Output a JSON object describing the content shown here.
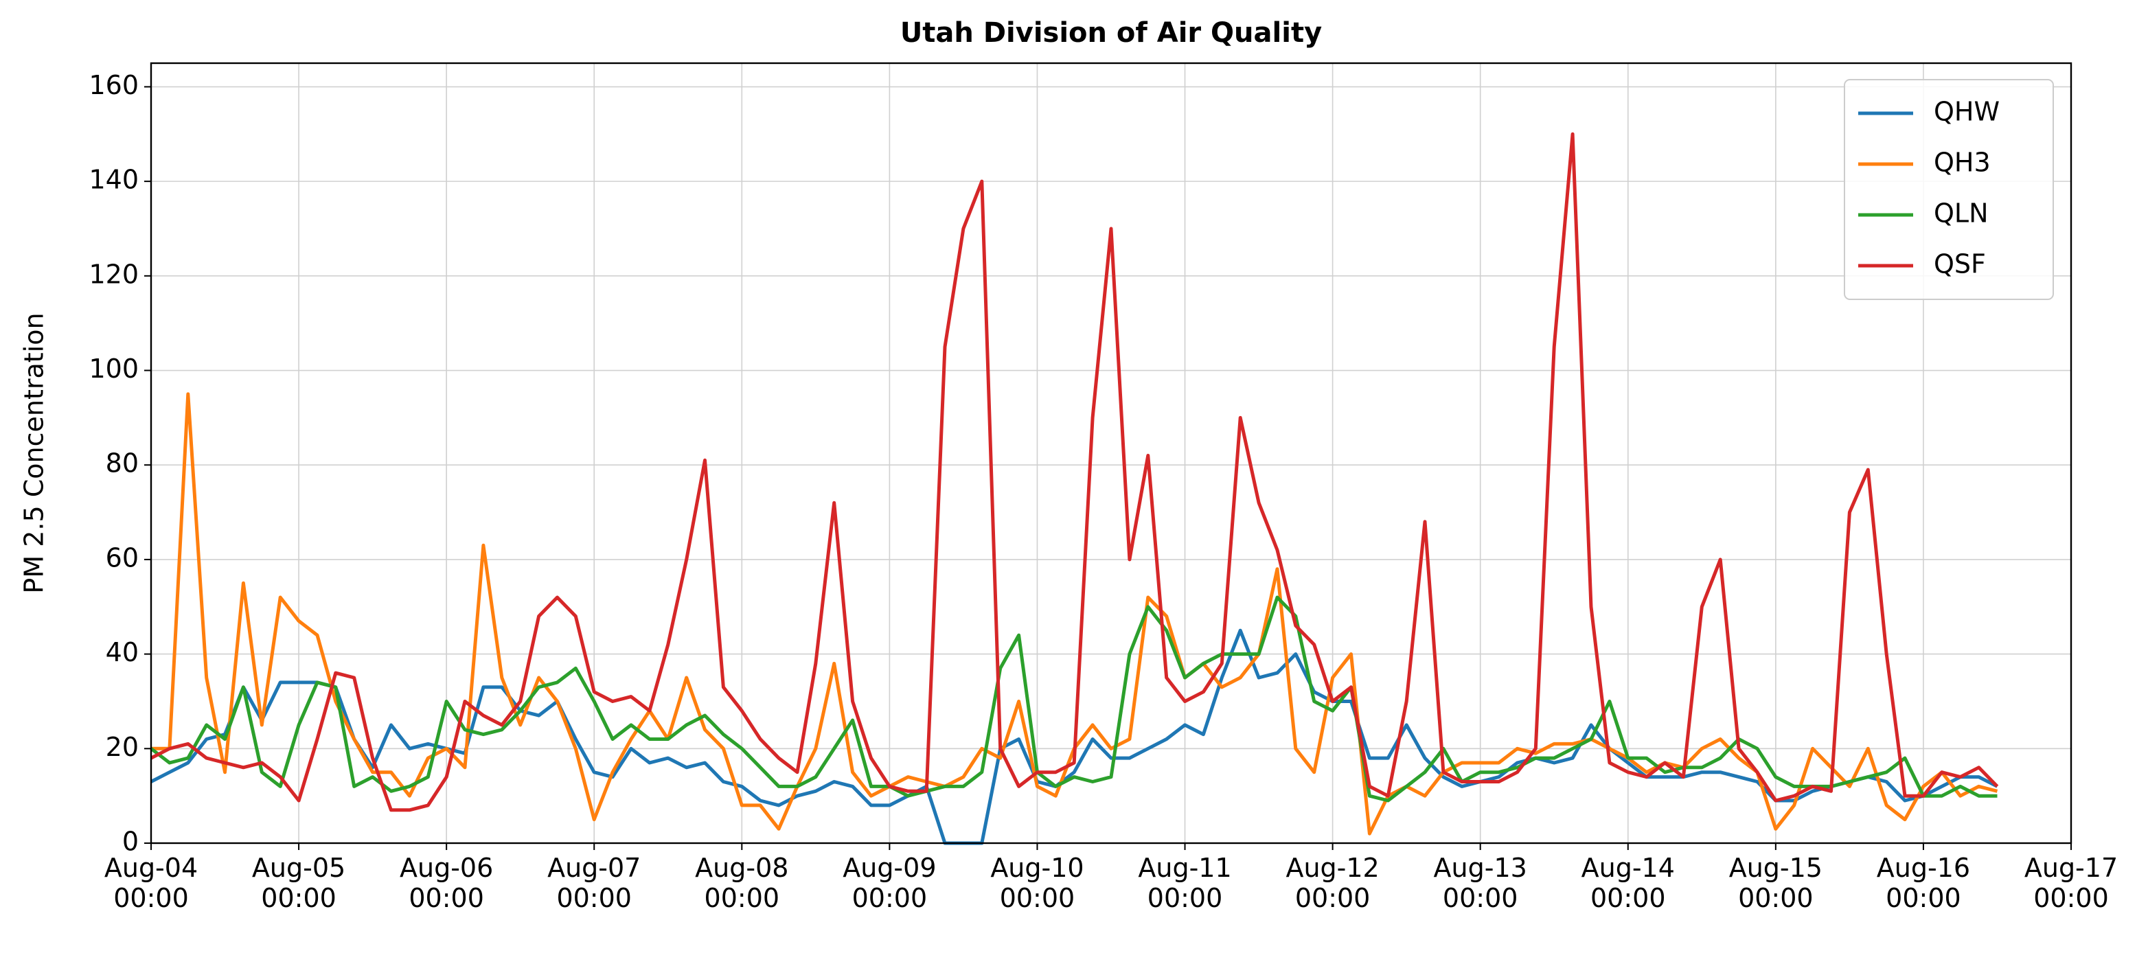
{
  "chart_data": {
    "type": "line",
    "title": "Utah Division of Air Quality",
    "ylabel": "PM 2.5 Concentration",
    "x": [
      "Aug-04 00:00",
      "Aug-04 03:00",
      "Aug-04 06:00",
      "Aug-04 09:00",
      "Aug-04 12:00",
      "Aug-04 15:00",
      "Aug-04 18:00",
      "Aug-04 21:00",
      "Aug-05 00:00",
      "Aug-05 03:00",
      "Aug-05 06:00",
      "Aug-05 09:00",
      "Aug-05 12:00",
      "Aug-05 15:00",
      "Aug-05 18:00",
      "Aug-05 21:00",
      "Aug-06 00:00",
      "Aug-06 03:00",
      "Aug-06 06:00",
      "Aug-06 09:00",
      "Aug-06 12:00",
      "Aug-06 15:00",
      "Aug-06 18:00",
      "Aug-06 21:00",
      "Aug-07 00:00",
      "Aug-07 03:00",
      "Aug-07 06:00",
      "Aug-07 09:00",
      "Aug-07 12:00",
      "Aug-07 15:00",
      "Aug-07 18:00",
      "Aug-07 21:00",
      "Aug-08 00:00",
      "Aug-08 03:00",
      "Aug-08 06:00",
      "Aug-08 09:00",
      "Aug-08 12:00",
      "Aug-08 15:00",
      "Aug-08 18:00",
      "Aug-08 21:00",
      "Aug-09 00:00",
      "Aug-09 03:00",
      "Aug-09 06:00",
      "Aug-09 09:00",
      "Aug-09 12:00",
      "Aug-09 15:00",
      "Aug-09 18:00",
      "Aug-09 21:00",
      "Aug-10 00:00",
      "Aug-10 03:00",
      "Aug-10 06:00",
      "Aug-10 09:00",
      "Aug-10 12:00",
      "Aug-10 15:00",
      "Aug-10 18:00",
      "Aug-10 21:00",
      "Aug-11 00:00",
      "Aug-11 03:00",
      "Aug-11 06:00",
      "Aug-11 09:00",
      "Aug-11 12:00",
      "Aug-11 15:00",
      "Aug-11 18:00",
      "Aug-11 21:00",
      "Aug-12 00:00",
      "Aug-12 03:00",
      "Aug-12 06:00",
      "Aug-12 09:00",
      "Aug-12 12:00",
      "Aug-12 15:00",
      "Aug-12 18:00",
      "Aug-12 21:00",
      "Aug-13 00:00",
      "Aug-13 03:00",
      "Aug-13 06:00",
      "Aug-13 09:00",
      "Aug-13 12:00",
      "Aug-13 15:00",
      "Aug-13 18:00",
      "Aug-13 21:00",
      "Aug-14 00:00",
      "Aug-14 03:00",
      "Aug-14 06:00",
      "Aug-14 09:00",
      "Aug-14 12:00",
      "Aug-14 15:00",
      "Aug-14 18:00",
      "Aug-14 21:00",
      "Aug-15 00:00",
      "Aug-15 03:00",
      "Aug-15 06:00",
      "Aug-15 09:00",
      "Aug-15 12:00",
      "Aug-15 15:00",
      "Aug-15 18:00",
      "Aug-15 21:00",
      "Aug-16 00:00",
      "Aug-16 03:00",
      "Aug-16 06:00",
      "Aug-16 09:00",
      "Aug-16 12:00"
    ],
    "series": [
      {
        "name": "QHW",
        "color": "#1f77b4",
        "values": [
          13,
          15,
          17,
          22,
          23,
          33,
          26,
          34,
          34,
          34,
          33,
          22,
          16,
          25,
          20,
          21,
          20,
          19,
          33,
          33,
          28,
          27,
          30,
          22,
          15,
          14,
          20,
          17,
          18,
          16,
          17,
          13,
          12,
          9,
          8,
          10,
          11,
          13,
          12,
          8,
          8,
          10,
          12,
          0,
          0,
          0,
          20,
          22,
          13,
          12,
          15,
          22,
          18,
          18,
          20,
          22,
          25,
          23,
          35,
          45,
          35,
          36,
          40,
          32,
          30,
          30,
          18,
          18,
          25,
          18,
          14,
          12,
          13,
          14,
          17,
          18,
          17,
          18,
          25,
          20,
          17,
          14,
          14,
          14,
          15,
          15,
          14,
          13,
          9,
          9,
          11,
          12,
          13,
          14,
          13,
          9,
          10,
          12,
          14,
          14,
          12
        ]
      },
      {
        "name": "QH3",
        "color": "#ff7f0e",
        "values": [
          20,
          20,
          95,
          35,
          15,
          55,
          25,
          52,
          47,
          44,
          30,
          22,
          15,
          15,
          10,
          18,
          20,
          16,
          63,
          35,
          25,
          35,
          30,
          20,
          5,
          15,
          22,
          28,
          22,
          35,
          24,
          20,
          8,
          8,
          3,
          12,
          20,
          38,
          15,
          10,
          12,
          14,
          13,
          12,
          14,
          20,
          18,
          30,
          12,
          10,
          20,
          25,
          20,
          22,
          52,
          48,
          35,
          38,
          33,
          35,
          40,
          58,
          20,
          15,
          35,
          40,
          2,
          10,
          12,
          10,
          15,
          17,
          17,
          17,
          20,
          19,
          21,
          21,
          22,
          20,
          18,
          15,
          17,
          16,
          20,
          22,
          18,
          15,
          3,
          8,
          20,
          16,
          12,
          20,
          8,
          5,
          12,
          15,
          10,
          12,
          11
        ]
      },
      {
        "name": "QLN",
        "color": "#2ca02c",
        "values": [
          20,
          17,
          18,
          25,
          22,
          33,
          15,
          12,
          25,
          34,
          33,
          12,
          14,
          11,
          12,
          14,
          30,
          24,
          23,
          24,
          28,
          33,
          34,
          37,
          30,
          22,
          25,
          22,
          22,
          25,
          27,
          23,
          20,
          16,
          12,
          12,
          14,
          20,
          26,
          12,
          12,
          10,
          11,
          12,
          12,
          15,
          37,
          44,
          15,
          12,
          14,
          13,
          14,
          40,
          50,
          45,
          35,
          38,
          40,
          40,
          40,
          52,
          48,
          30,
          28,
          33,
          10,
          9,
          12,
          15,
          20,
          13,
          15,
          15,
          16,
          18,
          18,
          20,
          22,
          30,
          18,
          18,
          15,
          16,
          16,
          18,
          22,
          20,
          14,
          12,
          12,
          12,
          13,
          14,
          15,
          18,
          10,
          10,
          12,
          10,
          10
        ]
      },
      {
        "name": "QSF",
        "color": "#d62728",
        "values": [
          18,
          20,
          21,
          18,
          17,
          16,
          17,
          14,
          9,
          22,
          36,
          35,
          18,
          7,
          7,
          8,
          14,
          30,
          27,
          25,
          30,
          48,
          52,
          48,
          32,
          30,
          31,
          28,
          42,
          60,
          81,
          33,
          28,
          22,
          18,
          15,
          38,
          72,
          30,
          18,
          12,
          11,
          11,
          105,
          130,
          140,
          20,
          12,
          15,
          15,
          17,
          90,
          130,
          60,
          82,
          35,
          30,
          32,
          38,
          90,
          72,
          62,
          46,
          42,
          30,
          33,
          12,
          10,
          30,
          68,
          15,
          13,
          13,
          13,
          15,
          20,
          105,
          150,
          50,
          17,
          15,
          14,
          17,
          14,
          50,
          60,
          20,
          15,
          9,
          10,
          12,
          11,
          70,
          79,
          40,
          10,
          10,
          15,
          14,
          16,
          12
        ]
      }
    ],
    "xlim": [
      "Aug-04 00:00",
      "Aug-17 00:00"
    ],
    "xticks": [
      {
        "value": "Aug-04 00:00",
        "label": "Aug-04\n00:00"
      },
      {
        "value": "Aug-05 00:00",
        "label": "Aug-05\n00:00"
      },
      {
        "value": "Aug-06 00:00",
        "label": "Aug-06\n00:00"
      },
      {
        "value": "Aug-07 00:00",
        "label": "Aug-07\n00:00"
      },
      {
        "value": "Aug-08 00:00",
        "label": "Aug-08\n00:00"
      },
      {
        "value": "Aug-09 00:00",
        "label": "Aug-09\n00:00"
      },
      {
        "value": "Aug-10 00:00",
        "label": "Aug-10\n00:00"
      },
      {
        "value": "Aug-11 00:00",
        "label": "Aug-11\n00:00"
      },
      {
        "value": "Aug-12 00:00",
        "label": "Aug-12\n00:00"
      },
      {
        "value": "Aug-13 00:00",
        "label": "Aug-13\n00:00"
      },
      {
        "value": "Aug-14 00:00",
        "label": "Aug-14\n00:00"
      },
      {
        "value": "Aug-15 00:00",
        "label": "Aug-15\n00:00"
      },
      {
        "value": "Aug-16 00:00",
        "label": "Aug-16\n00:00"
      },
      {
        "value": "Aug-17 00:00",
        "label": "Aug-17\n00:00"
      }
    ],
    "ylim": [
      0,
      165
    ],
    "yticks": [
      0,
      20,
      40,
      60,
      80,
      100,
      120,
      140,
      160
    ],
    "grid": true,
    "legend": "upper right"
  }
}
